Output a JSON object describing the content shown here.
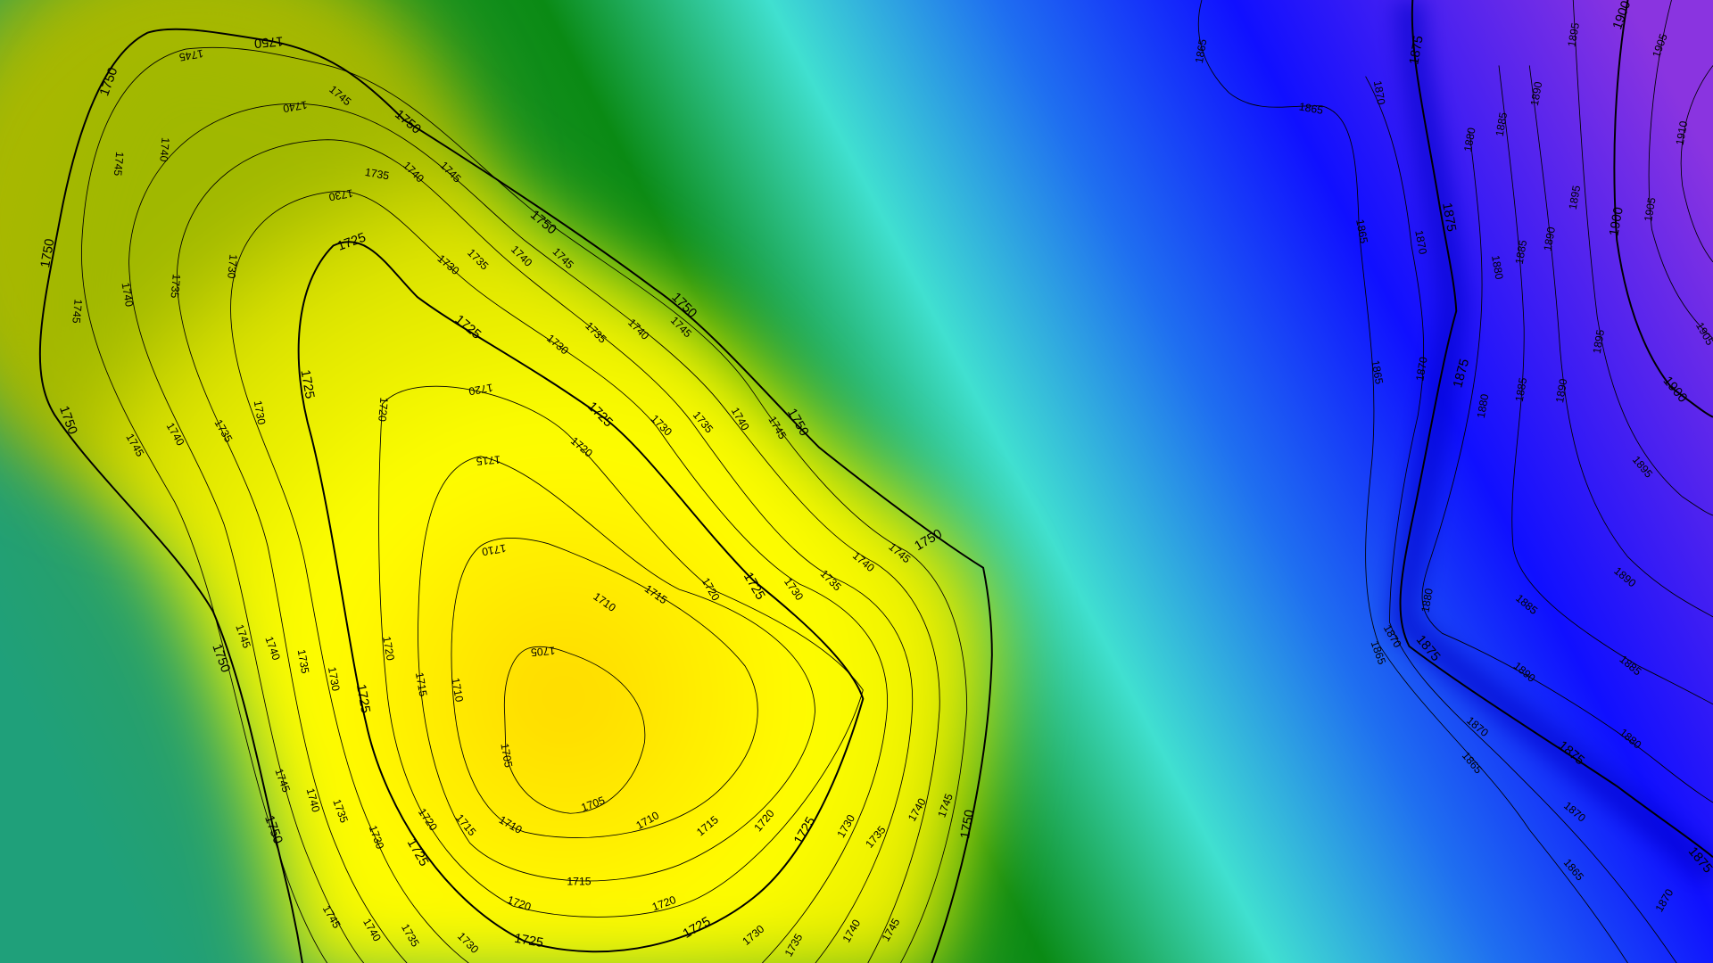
{
  "map": {
    "type": "contour",
    "colors": {
      "low": "#ffd700",
      "mid_low": "#ffff00",
      "mid": "#0a8a14",
      "cyan": "#40e0d0",
      "blue": "#1f6ff0",
      "deep_blue": "#1010ff",
      "high": "#8a34e0"
    },
    "contour_interval": 5,
    "major_interval": 25,
    "levels_left": [
      "1705",
      "1710",
      "1715",
      "1720",
      "1725",
      "1730",
      "1735",
      "1740",
      "1745",
      "1750"
    ],
    "levels_right": [
      "1865",
      "1870",
      "1875",
      "1880",
      "1885",
      "1890",
      "1895",
      "1900",
      "1905",
      "1910"
    ]
  }
}
